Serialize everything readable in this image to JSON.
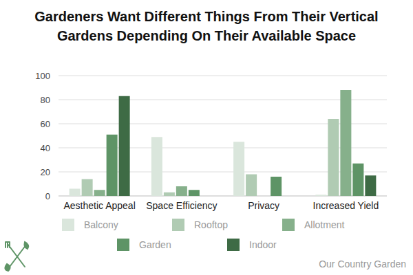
{
  "chart_data": {
    "type": "bar",
    "title": "Gardeners Want Different Things From Their Vertical Gardens Depending On Their Available Space",
    "categories": [
      "Aesthetic Appeal",
      "Space Efficiency",
      "Privacy",
      "Increased Yield"
    ],
    "series": [
      {
        "name": "Balcony",
        "color": "#dae6dc",
        "values": [
          6,
          49,
          45,
          1
        ]
      },
      {
        "name": "Rooftop",
        "color": "#b0cbb3",
        "values": [
          14,
          3,
          18,
          64
        ]
      },
      {
        "name": "Allotment",
        "color": "#86b08b",
        "values": [
          5,
          8,
          0,
          88
        ]
      },
      {
        "name": "Garden",
        "color": "#5e9466",
        "values": [
          51,
          5,
          16,
          27
        ]
      },
      {
        "name": "Indoor",
        "color": "#3e6b45",
        "values": [
          83,
          0,
          0,
          17
        ]
      }
    ],
    "ylim": [
      0,
      100
    ],
    "yticks": [
      0,
      20,
      40,
      60,
      80,
      100
    ],
    "grid": true,
    "legend": "bottom",
    "source": "Our Country Garden"
  }
}
